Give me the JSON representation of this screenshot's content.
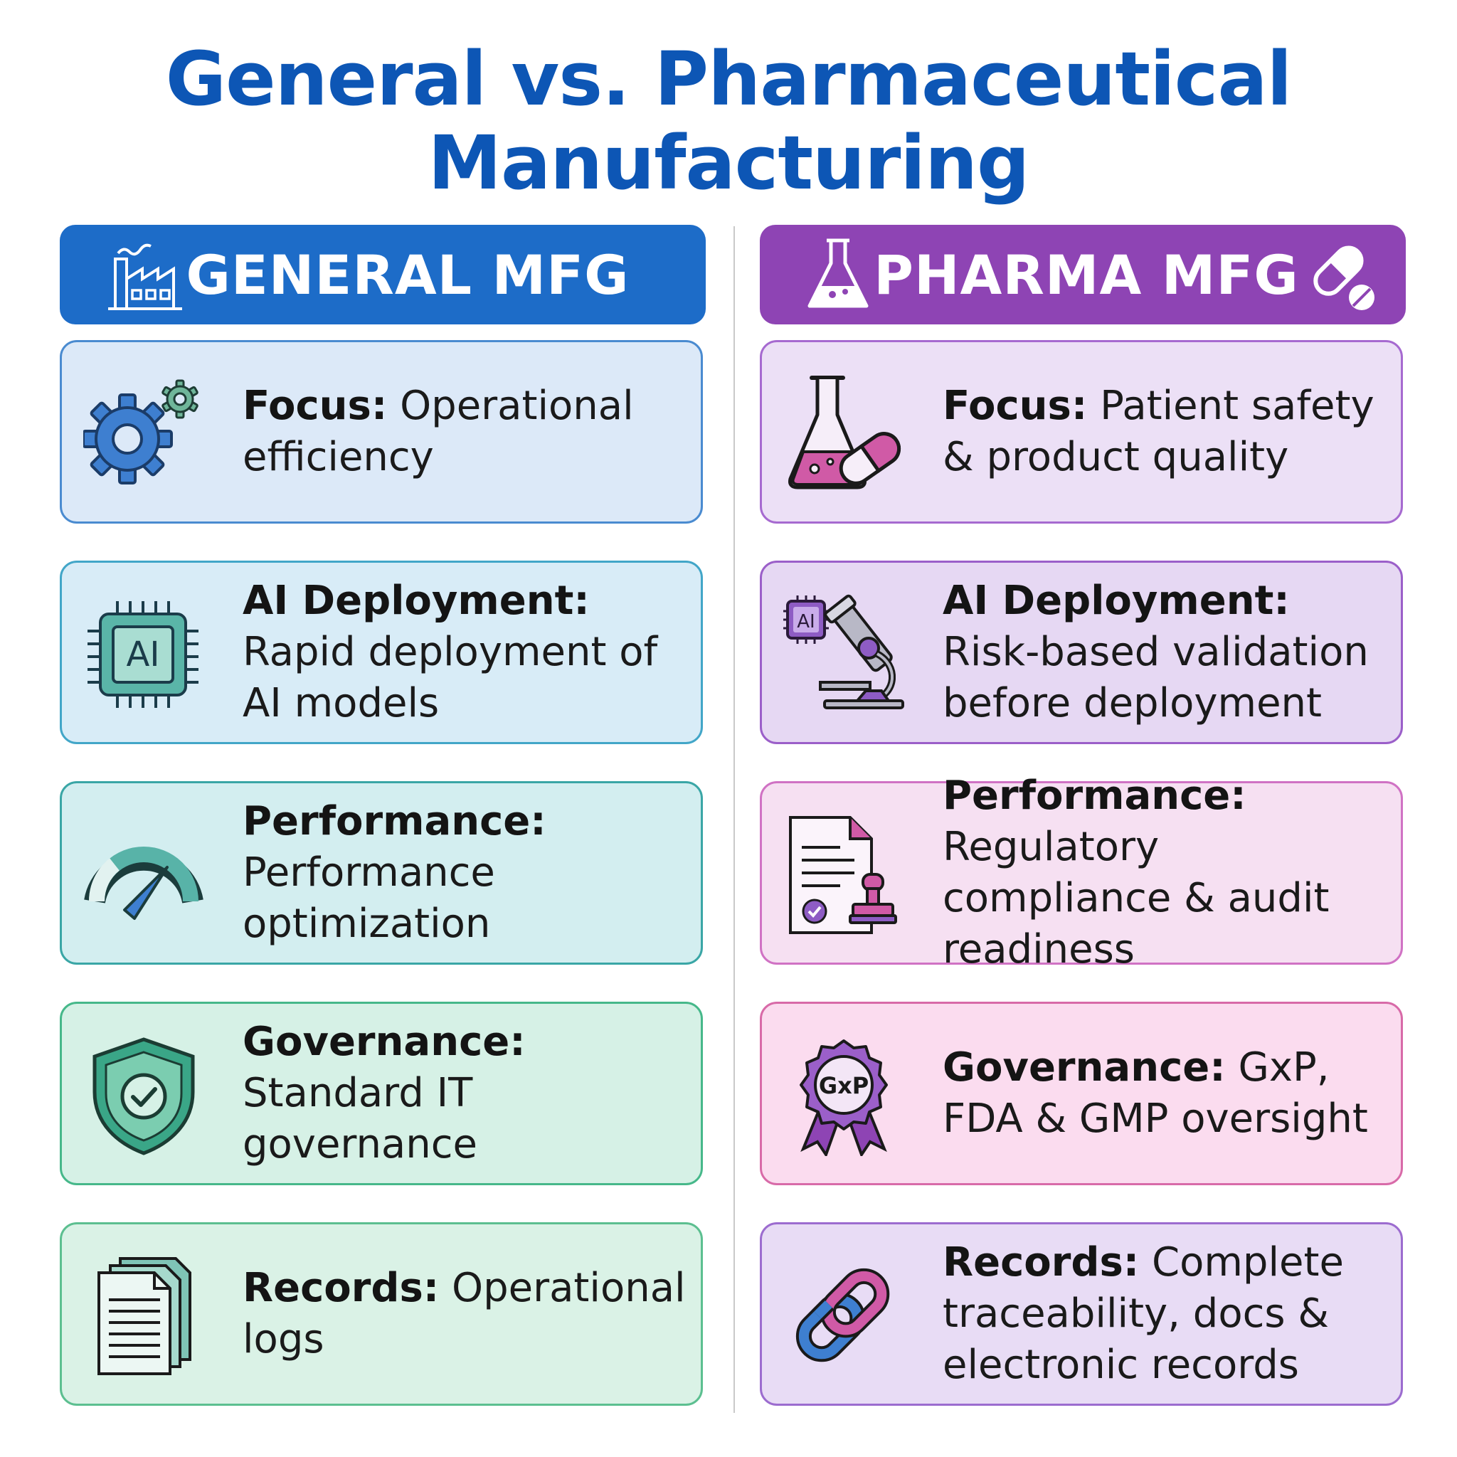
{
  "title": {
    "line1": "General vs. Pharmaceutical",
    "line2": "Manufacturing"
  },
  "colors": {
    "title": "#0d56b5",
    "general_header": "#1d6cc8",
    "pharma_header": "#8e44b4"
  },
  "general": {
    "header": "GENERAL MFG",
    "header_icon": "factory-icon",
    "items": [
      {
        "label": "Focus:",
        "text": "Operational efficiency",
        "icon": "gears-icon"
      },
      {
        "label": "AI Deployment:",
        "text": "Rapid deployment of AI models",
        "icon": "ai-chip-icon",
        "icon_text": "AI"
      },
      {
        "label": "Performance:",
        "text": "Performance optimization",
        "icon": "gauge-icon"
      },
      {
        "label": "Governance:",
        "text": "Standard IT governance",
        "icon": "shield-check-icon"
      },
      {
        "label": "Records:",
        "text": "Operational logs",
        "icon": "documents-icon"
      }
    ]
  },
  "pharma": {
    "header": "PHARMA MFG",
    "header_icons": [
      "flask-icon",
      "pills-icon"
    ],
    "items": [
      {
        "label": "Focus:",
        "text": "Patient safety & product quality",
        "icon": "flask-capsule-icon"
      },
      {
        "label": "AI Deployment:",
        "text": "Risk-based validation before deployment",
        "icon": "ai-microscope-icon",
        "icon_text": "AI"
      },
      {
        "label": "Performance:",
        "text": "Regulatory compliance & audit readiness",
        "icon": "document-stamp-icon"
      },
      {
        "label": "Governance:",
        "text": "GxP, FDA & GMP oversight",
        "icon": "gxp-badge-icon",
        "icon_text": "GxP"
      },
      {
        "label": "Records:",
        "text": "Complete traceability, docs & electronic records",
        "icon": "chain-link-icon"
      }
    ]
  }
}
